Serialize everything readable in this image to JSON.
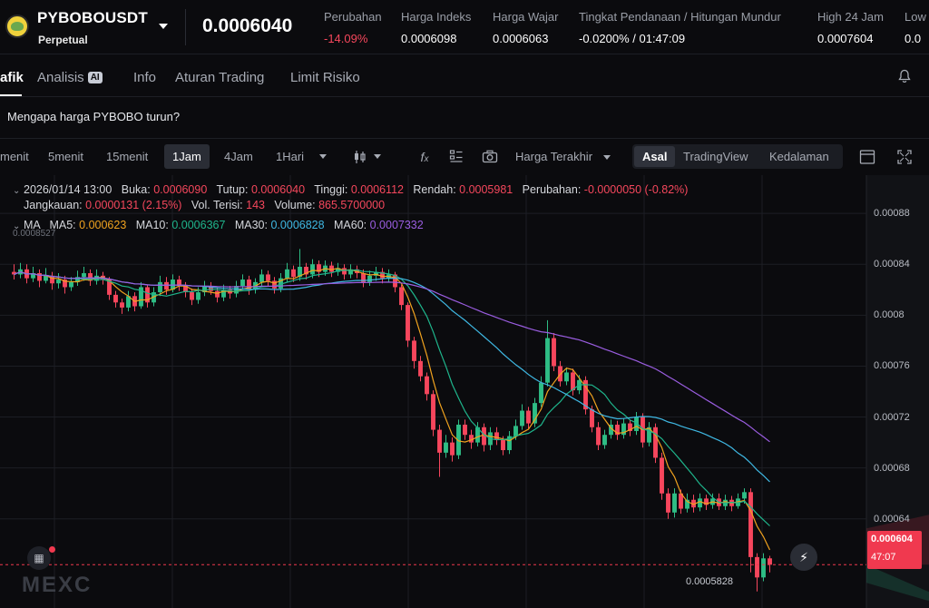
{
  "ticker": {
    "symbol": "PYBOBOUSDT",
    "contract_type": "Perpetual",
    "last_price": "0.0006040",
    "stats": [
      {
        "label": "Perubahan",
        "value": "-14.09%",
        "color": "red"
      },
      {
        "label": "Harga Indeks",
        "value": "0.0006098",
        "color": "white"
      },
      {
        "label": "Harga Wajar",
        "value": "0.0006063",
        "color": "white"
      },
      {
        "label": "Tingkat Pendanaan / Hitungan Mundur",
        "value": "-0.0200% / 01:47:09",
        "color": "white"
      },
      {
        "label": "High 24 Jam",
        "value": "0.0007604",
        "color": "white"
      },
      {
        "label": "Low",
        "value": "0.0",
        "color": "white"
      }
    ]
  },
  "tabs": [
    {
      "label": "afik",
      "active": true
    },
    {
      "label": "Analisis",
      "active": false,
      "badge": "AI"
    },
    {
      "label": "Info",
      "active": false
    },
    {
      "label": "Aturan Trading",
      "active": false
    },
    {
      "label": "Limit Risiko",
      "active": false
    }
  ],
  "question": "Mengapa harga PYBOBO turun?",
  "toolbar": {
    "timeframes": [
      "menit",
      "5menit",
      "15menit",
      "1Jam",
      "4Jam",
      "1Hari"
    ],
    "active_timeframe": "1Jam",
    "price_source": "Harga Terakhir",
    "views": [
      "Asal",
      "TradingView",
      "Kedalaman"
    ],
    "active_view": "Asal"
  },
  "legend": {
    "datetime": "2026/01/14 13:00",
    "open_label": "Buka:",
    "open": "0.0006090",
    "close_label": "Tutup:",
    "close": "0.0006040",
    "high_label": "Tinggi:",
    "high": "0.0006112",
    "low_label": "Rendah:",
    "low": "0.0005981",
    "change_label": "Perubahan:",
    "change": "-0.0000050 (-0.82%)",
    "range_label": "Jangkauan:",
    "range": "0.0000131 (2.15%)",
    "filled_label": "Vol. Terisi:",
    "filled": "143",
    "volume_label": "Volume:",
    "volume": "865.5700000",
    "ma_title": "MA",
    "ma": [
      {
        "label": "MA5:",
        "value": "0.000623",
        "color": "#f0a21f"
      },
      {
        "label": "MA10:",
        "value": "0.0006367",
        "color": "#1fb58c"
      },
      {
        "label": "MA30:",
        "value": "0.0006828",
        "color": "#3fb8e3"
      },
      {
        "label": "MA60:",
        "value": "0.0007332",
        "color": "#9a5de0"
      }
    ]
  },
  "chart_data": {
    "type": "candlestick",
    "y_ticks": [
      "0.00088",
      "0.00084",
      "0.0008",
      "0.00076",
      "0.00072",
      "0.00068",
      "0.00064"
    ],
    "ylim": [
      0.00057,
      0.00091
    ],
    "current_price": "0.000604",
    "countdown": "47:07",
    "visible_high": "0.0008527",
    "visible_low": "0.0005828",
    "colors": {
      "up": "#2ebd85",
      "down": "#f6465d"
    },
    "candles": [
      [
        0.000834,
        0.000832,
        0.00084,
        0.000828
      ],
      [
        0.000832,
        0.000836,
        0.000841,
        0.000829
      ],
      [
        0.000836,
        0.000829,
        0.00084,
        0.000825
      ],
      [
        0.000829,
        0.000833,
        0.000838,
        0.000826
      ],
      [
        0.000833,
        0.000827,
        0.000836,
        0.000822
      ],
      [
        0.000827,
        0.000831,
        0.000837,
        0.000825
      ],
      [
        0.000831,
        0.000825,
        0.000834,
        0.00082
      ],
      [
        0.000825,
        0.000828,
        0.000833,
        0.000821
      ],
      [
        0.000828,
        0.000822,
        0.000831,
        0.000817
      ],
      [
        0.000822,
        0.000826,
        0.00083,
        0.000819
      ],
      [
        0.000826,
        0.00083,
        0.000835,
        0.000823
      ],
      [
        0.00083,
        0.000833,
        0.000838,
        0.000827
      ],
      [
        0.000833,
        0.000827,
        0.000836,
        0.000823
      ],
      [
        0.000827,
        0.000831,
        0.000836,
        0.000824
      ],
      [
        0.000831,
        0.000828,
        0.000834,
        0.000824
      ],
      [
        0.000828,
        0.000816,
        0.00083,
        0.000812
      ],
      [
        0.000816,
        0.00081,
        0.000819,
        0.000806
      ],
      [
        0.00081,
        0.000806,
        0.000813,
        0.000801
      ],
      [
        0.000806,
        0.000815,
        0.000819,
        0.000803
      ],
      [
        0.000815,
        0.000807,
        0.000818,
        0.000803
      ],
      [
        0.000807,
        0.000822,
        0.000826,
        0.000805
      ],
      [
        0.000822,
        0.00081,
        0.000824,
        0.000806
      ],
      [
        0.00081,
        0.000818,
        0.000822,
        0.000807
      ],
      [
        0.000818,
        0.000826,
        0.000831,
        0.000815
      ],
      [
        0.000826,
        0.00082,
        0.00083,
        0.000816
      ],
      [
        0.00082,
        0.000828,
        0.000832,
        0.000818
      ],
      [
        0.000828,
        0.000823,
        0.000831,
        0.000819
      ],
      [
        0.000823,
        0.000818,
        0.000826,
        0.000814
      ],
      [
        0.000818,
        0.000812,
        0.000821,
        0.000808
      ],
      [
        0.000812,
        0.000818,
        0.000822,
        0.000809
      ],
      [
        0.000818,
        0.000823,
        0.000827,
        0.000815
      ],
      [
        0.000823,
        0.000819,
        0.000826,
        0.000816
      ],
      [
        0.000819,
        0.000814,
        0.000822,
        0.00081
      ],
      [
        0.000814,
        0.00082,
        0.000824,
        0.000811
      ],
      [
        0.00082,
        0.000817,
        0.000823,
        0.000813
      ],
      [
        0.000817,
        0.000823,
        0.000827,
        0.000814
      ],
      [
        0.000823,
        0.000828,
        0.000832,
        0.00082
      ],
      [
        0.000828,
        0.00082,
        0.000831,
        0.000816
      ],
      [
        0.00082,
        0.000826,
        0.000829,
        0.000817
      ],
      [
        0.000826,
        0.000832,
        0.000836,
        0.000823
      ],
      [
        0.000832,
        0.000827,
        0.000835,
        0.000823
      ],
      [
        0.000827,
        0.000821,
        0.00083,
        0.000817
      ],
      [
        0.000821,
        0.000829,
        0.000833,
        0.000818
      ],
      [
        0.000829,
        0.000836,
        0.000841,
        0.000826
      ],
      [
        0.000836,
        0.00083,
        0.000839,
        0.000826
      ],
      [
        0.00083,
        0.000838,
        0.000852,
        0.000827
      ],
      [
        0.000838,
        0.000832,
        0.000841,
        0.000828
      ],
      [
        0.000832,
        0.00084,
        0.000844,
        0.000829
      ],
      [
        0.00084,
        0.000834,
        0.000843,
        0.00083
      ],
      [
        0.000834,
        0.000839,
        0.000843,
        0.000831
      ],
      [
        0.000839,
        0.000834,
        0.000842,
        0.00083
      ],
      [
        0.000834,
        0.000837,
        0.000841,
        0.000831
      ],
      [
        0.000837,
        0.000832,
        0.00084,
        0.000828
      ],
      [
        0.000832,
        0.000836,
        0.00084,
        0.000829
      ],
      [
        0.000836,
        0.000833,
        0.000839,
        0.000829
      ],
      [
        0.000833,
        0.000826,
        0.000836,
        0.000822
      ],
      [
        0.000826,
        0.000831,
        0.000835,
        0.000823
      ],
      [
        0.000831,
        0.000834,
        0.000838,
        0.000827
      ],
      [
        0.000834,
        0.000829,
        0.000837,
        0.000825
      ],
      [
        0.000829,
        0.000832,
        0.000836,
        0.000826
      ],
      [
        0.000832,
        0.000822,
        0.000834,
        0.000818
      ],
      [
        0.000822,
        0.000808,
        0.000824,
        0.000804
      ],
      [
        0.000808,
        0.00078,
        0.00081,
        0.000775
      ],
      [
        0.00078,
        0.000764,
        0.000783,
        0.000758
      ],
      [
        0.000764,
        0.000752,
        0.000768,
        0.000748
      ],
      [
        0.000752,
        0.000738,
        0.000755,
        0.000733
      ],
      [
        0.000738,
        0.00071,
        0.000741,
        0.000705
      ],
      [
        0.00071,
        0.000692,
        0.000714,
        0.000673
      ],
      [
        0.000692,
        0.0007,
        0.000706,
        0.000688
      ],
      [
        0.0007,
        0.00069,
        0.000704,
        0.000685
      ],
      [
        0.00069,
        0.000714,
        0.000718,
        0.000687
      ],
      [
        0.000714,
        0.000706,
        0.000718,
        0.000702
      ],
      [
        0.000706,
        0.0007,
        0.00071,
        0.000695
      ],
      [
        0.0007,
        0.000712,
        0.000716,
        0.000697
      ],
      [
        0.000712,
        0.000698,
        0.000715,
        0.000693
      ],
      [
        0.000698,
        0.000708,
        0.000712,
        0.000694
      ],
      [
        0.000708,
        0.000702,
        0.000712,
        0.000698
      ],
      [
        0.000702,
        0.000694,
        0.000705,
        0.00069
      ],
      [
        0.000694,
        0.000705,
        0.000709,
        0.000691
      ],
      [
        0.000705,
        0.000713,
        0.000718,
        0.000702
      ],
      [
        0.000713,
        0.000725,
        0.00073,
        0.00071
      ],
      [
        0.000725,
        0.000715,
        0.000728,
        0.000711
      ],
      [
        0.000715,
        0.000731,
        0.000735,
        0.000712
      ],
      [
        0.000731,
        0.000747,
        0.000752,
        0.000728
      ],
      [
        0.000747,
        0.000782,
        0.000796,
        0.000744
      ],
      [
        0.000782,
        0.00076,
        0.000786,
        0.000756
      ],
      [
        0.00076,
        0.000748,
        0.000764,
        0.000744
      ],
      [
        0.000748,
        0.000755,
        0.000759,
        0.000745
      ],
      [
        0.000755,
        0.000741,
        0.000758,
        0.000737
      ],
      [
        0.000741,
        0.000749,
        0.000753,
        0.000738
      ],
      [
        0.000749,
        0.000726,
        0.000752,
        0.000722
      ],
      [
        0.000726,
        0.000712,
        0.000729,
        0.000708
      ],
      [
        0.000712,
        0.000698,
        0.000716,
        0.000694
      ],
      [
        0.000698,
        0.000706,
        0.00071,
        0.000695
      ],
      [
        0.000706,
        0.000714,
        0.000718,
        0.000703
      ],
      [
        0.000714,
        0.000706,
        0.000717,
        0.000702
      ],
      [
        0.000706,
        0.000715,
        0.000719,
        0.000703
      ],
      [
        0.000715,
        0.000709,
        0.000718,
        0.000705
      ],
      [
        0.000709,
        0.00072,
        0.000724,
        0.000706
      ],
      [
        0.00072,
        0.0007,
        0.000723,
        0.000696
      ],
      [
        0.0007,
        0.000712,
        0.000716,
        0.000697
      ],
      [
        0.000712,
        0.000688,
        0.000715,
        0.000684
      ],
      [
        0.000688,
        0.00066,
        0.000692,
        0.000655
      ],
      [
        0.00066,
        0.000645,
        0.000664,
        0.00064
      ],
      [
        0.000645,
        0.00066,
        0.000664,
        0.000641
      ],
      [
        0.00066,
        0.000648,
        0.000663,
        0.000644
      ],
      [
        0.000648,
        0.000655,
        0.00066,
        0.000645
      ],
      [
        0.000655,
        0.000649,
        0.000659,
        0.000645
      ],
      [
        0.000649,
        0.000656,
        0.00066,
        0.000646
      ],
      [
        0.000656,
        0.000651,
        0.000659,
        0.000647
      ],
      [
        0.000651,
        0.000656,
        0.00066,
        0.000648
      ],
      [
        0.000656,
        0.00065,
        0.00066,
        0.000647
      ],
      [
        0.00065,
        0.000655,
        0.000659,
        0.000647
      ],
      [
        0.000655,
        0.00065,
        0.000658,
        0.000646
      ],
      [
        0.00065,
        0.000656,
        0.00066,
        0.000648
      ],
      [
        0.000656,
        0.000661,
        0.000664,
        0.000652
      ],
      [
        0.000661,
        0.00061,
        0.000664,
        0.000598
      ],
      [
        0.00061,
        0.000594,
        0.000613,
        0.000583
      ],
      [
        0.000594,
        0.000609,
        0.000613,
        0.000591
      ],
      [
        0.000609,
        0.000604,
        0.000611,
        0.000598
      ]
    ]
  },
  "watermark": "MEXC"
}
